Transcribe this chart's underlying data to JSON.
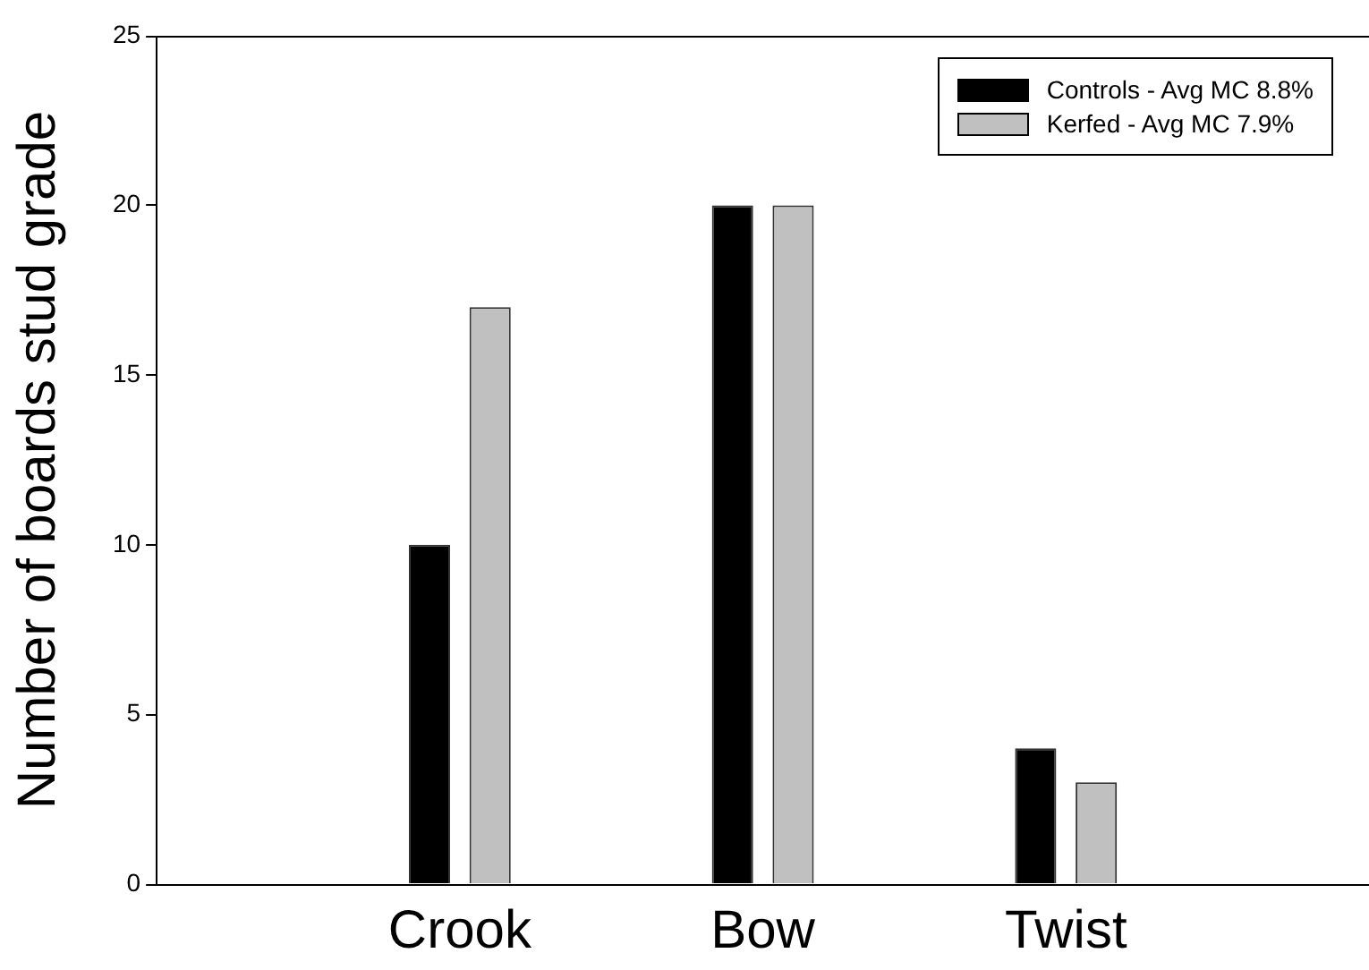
{
  "chart_data": {
    "type": "bar",
    "ylabel": "Number of boards stud grade",
    "categories": [
      "Crook",
      "Bow",
      "Twist"
    ],
    "series": [
      {
        "name": "Controls - Avg MC 8.8%",
        "color": "#000000",
        "values": [
          10,
          20,
          4
        ]
      },
      {
        "name": "Kerfed - Avg MC 7.9%",
        "color": "#c0c0c0",
        "values": [
          17,
          20,
          3
        ]
      }
    ],
    "ylim": [
      0,
      25
    ],
    "yticks": [
      0,
      5,
      10,
      15,
      20,
      25
    ],
    "grid": false,
    "legend": "top right"
  }
}
